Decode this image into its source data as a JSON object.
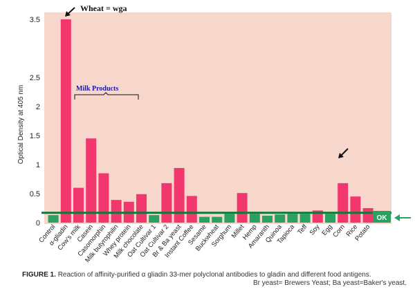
{
  "chart_data": {
    "type": "bar",
    "ylabel": "Optical Density at 405 nm",
    "ylim": [
      0,
      3.6
    ],
    "yticks": [
      "0",
      "0.5",
      "1",
      "1.5",
      "2",
      "2.5",
      "3.5"
    ],
    "threshold": 0.17,
    "categories": [
      "Control",
      "α-gliadin",
      "Cow's milk",
      "Casein",
      "Casomorphin",
      "Milk butyrophilin",
      "Whey protein",
      "Milk chocolate",
      "Oat Cultivar 1",
      "Oat Cultivar 2",
      "Br & Ba yeast",
      "Instant Coffee",
      "Sesame",
      "Buckwheat",
      "Sorghum",
      "Millet",
      "Hemp",
      "Amaranth",
      "Quinoa",
      "Tapioca",
      "Teff",
      "Soy",
      "Egg",
      "Corn",
      "Rice",
      "Potato"
    ],
    "values": [
      0.13,
      3.5,
      0.6,
      1.45,
      0.85,
      0.39,
      0.36,
      0.49,
      0.13,
      0.68,
      0.94,
      0.46,
      0.1,
      0.1,
      0.15,
      0.51,
      0.15,
      0.12,
      0.14,
      0.15,
      0.15,
      0.21,
      0.15,
      0.68,
      0.45,
      0.25
    ],
    "colors": [
      "green",
      "pink",
      "pink",
      "pink",
      "pink",
      "pink",
      "pink",
      "pink",
      "green",
      "pink",
      "pink",
      "pink",
      "green",
      "green",
      "green",
      "pink",
      "green",
      "green",
      "green",
      "green",
      "green",
      "pink",
      "green",
      "pink",
      "pink",
      "pink"
    ],
    "palette": {
      "pink": "#f2376f",
      "green": "#2aa160",
      "background": "#f7d6cc",
      "threshold_line": "#0c7a36",
      "ok_box": "#2aa160",
      "arrow": "#2aa160"
    },
    "annotations": {
      "wheat": "Wheat = wga",
      "milk": "Milk Products",
      "ok": "OK"
    }
  },
  "caption": {
    "label": "FIGURE 1.",
    "text": "Reaction of affinity-purified α gliadin 33-mer polyclonal antibodies to gladin and different food antigens.",
    "line2": "Br yeast= Brewers Yeast; Ba yeast=Baker's yeast."
  }
}
